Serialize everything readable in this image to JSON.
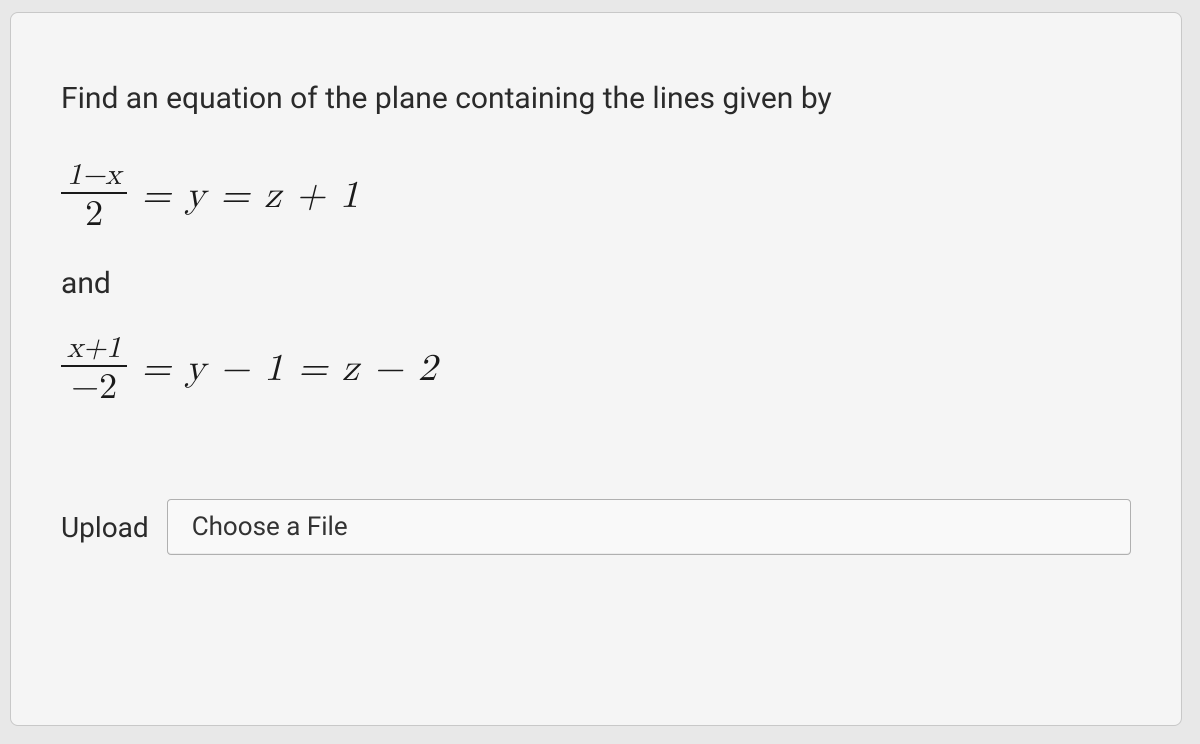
{
  "question": {
    "prompt": "Find an equation of the plane containing the lines given by",
    "equation1": {
      "numerator": "1−x",
      "denominator": "2",
      "rest": "= y = z + 1"
    },
    "connector": "and",
    "equation2": {
      "numerator": "x+1",
      "denominator": "−2",
      "rest": "= y − 1 = z − 2"
    }
  },
  "upload": {
    "label": "Upload",
    "button_text": "Choose a File"
  },
  "styling": {
    "body_bg": "#e8e8e8",
    "card_bg": "#f5f5f5",
    "card_border": "#c8c8c8",
    "text_color": "#2a2a2a",
    "math_color": "#1a1a1a",
    "button_border": "#b0b0b0",
    "button_bg": "#f9f9f9",
    "question_fontsize": 30,
    "equation_fontsize": 38,
    "fraction_num_fontsize": 30,
    "fraction_den_fontsize": 36,
    "upload_label_fontsize": 28,
    "button_fontsize": 26
  }
}
